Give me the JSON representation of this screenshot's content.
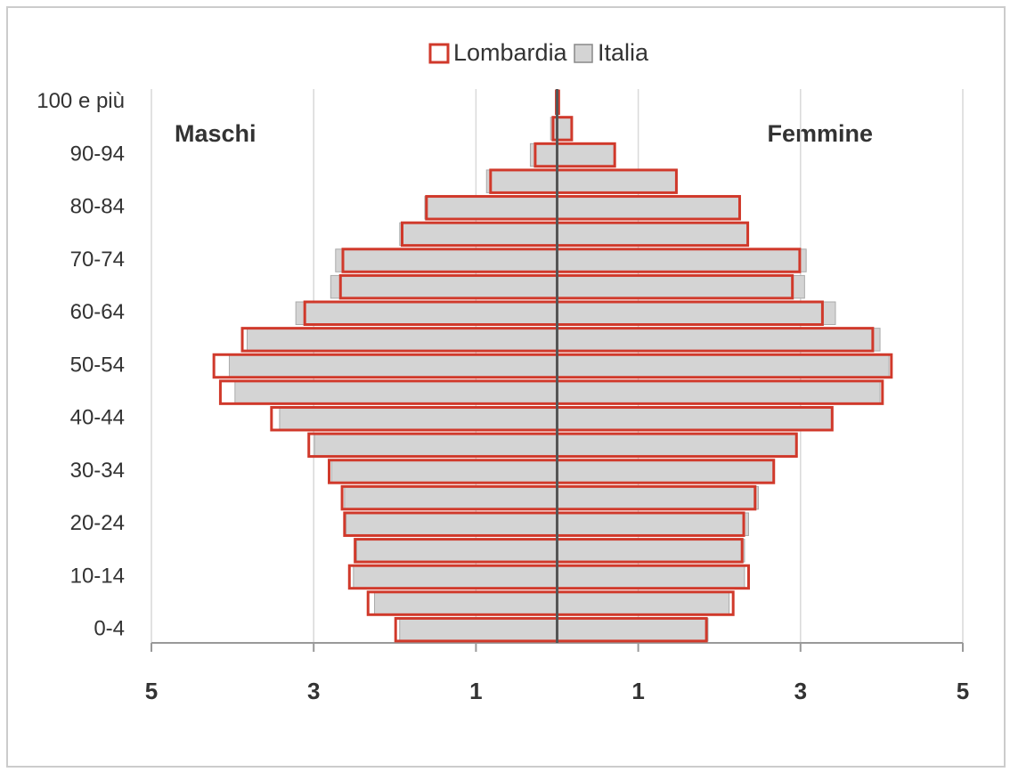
{
  "chart_data": {
    "type": "pyramid",
    "categories": [
      "0-4",
      null,
      "10-14",
      null,
      "20-24",
      null,
      "30-34",
      null,
      "40-44",
      null,
      "50-54",
      null,
      "60-64",
      null,
      "70-74",
      null,
      "80-84",
      null,
      "90-94",
      null,
      "100  e più"
    ],
    "annotations": [
      "Maschi",
      "Femmine"
    ],
    "series": [
      {
        "name": "Lombardia",
        "color": "#d0392b",
        "male": [
          -1.99,
          -2.33,
          -2.56,
          -2.49,
          -2.62,
          -2.65,
          -2.81,
          -3.06,
          -3.52,
          -4.15,
          -4.23,
          -3.88,
          -3.11,
          -2.67,
          -2.64,
          -1.91,
          -1.61,
          -0.82,
          -0.27,
          -0.05,
          -0.01
        ],
        "female": [
          1.84,
          2.17,
          2.36,
          2.28,
          2.3,
          2.44,
          2.67,
          2.95,
          3.39,
          4.01,
          4.12,
          3.89,
          3.27,
          2.9,
          2.99,
          2.35,
          2.25,
          1.47,
          0.71,
          0.18,
          0.02
        ]
      },
      {
        "name": "Italia",
        "color": "#d4d4d4",
        "male": [
          -1.94,
          -2.25,
          -2.51,
          -2.47,
          -2.6,
          -2.62,
          -2.78,
          -2.99,
          -3.42,
          -3.97,
          -4.04,
          -3.82,
          -3.22,
          -2.79,
          -2.73,
          -1.94,
          -1.63,
          -0.87,
          -0.33,
          -0.08,
          -0.02
        ],
        "female": [
          1.86,
          2.12,
          2.31,
          2.31,
          2.36,
          2.48,
          2.67,
          2.96,
          3.38,
          3.98,
          4.09,
          3.98,
          3.43,
          3.05,
          3.07,
          2.35,
          2.24,
          1.48,
          0.71,
          0.18,
          0.02
        ]
      }
    ],
    "xlim": [
      -5,
      5
    ],
    "xticks": [
      {
        "value": -5,
        "label": "5"
      },
      {
        "value": -3,
        "label": "3"
      },
      {
        "value": -1,
        "label": "1"
      },
      1,
      3,
      5
    ],
    "grid": true,
    "legend": "top"
  }
}
